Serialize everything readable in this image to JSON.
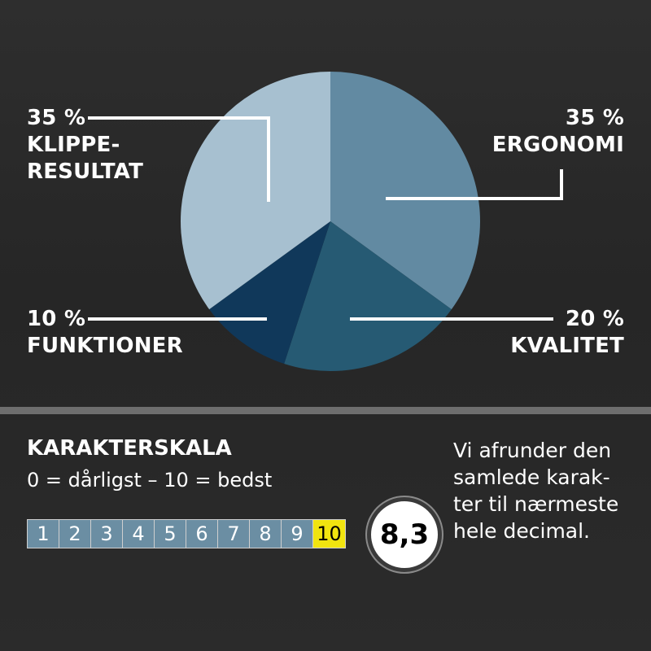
{
  "chart_data": {
    "type": "pie",
    "slices": [
      {
        "label_lines": [
          "ERGONOMI"
        ],
        "percent_label": "35 %",
        "value": 35,
        "color": "#628aa2"
      },
      {
        "label_lines": [
          "KVALITET"
        ],
        "percent_label": "20 %",
        "value": 20,
        "color": "#265a73"
      },
      {
        "label_lines": [
          "FUNKTIONER"
        ],
        "percent_label": "10 %",
        "value": 10,
        "color": "#10385a"
      },
      {
        "label_lines": [
          "KLIPPE-",
          "RESULTAT"
        ],
        "percent_label": "35 %",
        "value": 35,
        "color": "#a7c0d0"
      }
    ]
  },
  "scale": {
    "title": "KARAKTERSKALA",
    "subtitle": "0 = dårligst – 10 = bedst",
    "steps": [
      "1",
      "2",
      "3",
      "4",
      "5",
      "6",
      "7",
      "8",
      "9",
      "10"
    ],
    "highlighted": "10",
    "score": "8,3"
  },
  "note": {
    "lines": [
      "Vi afrunder den",
      "samlede karak-",
      "ter til nærmeste",
      "hele decimal."
    ]
  }
}
